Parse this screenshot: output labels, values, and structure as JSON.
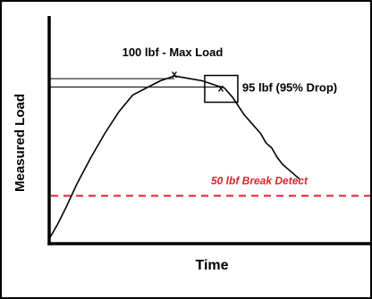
{
  "chart_data": {
    "type": "line",
    "title": "",
    "xlabel": "Time",
    "ylabel": "Measured Load",
    "ylim": [
      30,
      125
    ],
    "xlim": [
      0,
      10
    ],
    "grid": false,
    "legend": "none",
    "colors": {
      "axis": "#000000",
      "curve": "#000000",
      "break_line": "#e0202a",
      "frame": "#000000"
    },
    "series": [
      {
        "x": [
          0.0,
          0.3,
          0.6,
          1.0,
          1.5,
          2.0,
          2.5,
          3.0,
          3.5,
          4.0,
          4.5,
          5.0,
          5.5,
          6.0,
          6.3,
          6.6,
          7.0,
          7.3,
          7.6,
          7.8,
          8.0,
          8.2,
          8.4,
          8.6,
          8.8,
          9.0
        ],
        "y": [
          32,
          38,
          45,
          55,
          66,
          76,
          85,
          92,
          95,
          98,
          100,
          99,
          98,
          96,
          95,
          91,
          84,
          80,
          76,
          72,
          70,
          66,
          63,
          61,
          59,
          57
        ]
      }
    ],
    "annotations": {
      "max_load": {
        "text": "100 lbf - Max Load",
        "x": 4.5,
        "y": 100,
        "marker": "x"
      },
      "drop": {
        "text": "95 lbf  (95% Drop)",
        "x": 6.3,
        "y": 95,
        "marker": "x"
      },
      "break_detect": {
        "text": "50 lbf Break Detect",
        "y": 50
      }
    }
  }
}
